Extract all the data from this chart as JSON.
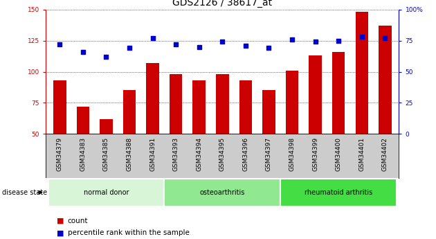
{
  "title": "GDS2126 / 38617_at",
  "samples": [
    "GSM34379",
    "GSM34383",
    "GSM34385",
    "GSM34388",
    "GSM34391",
    "GSM34393",
    "GSM34394",
    "GSM34395",
    "GSM34396",
    "GSM34397",
    "GSM34398",
    "GSM34399",
    "GSM34400",
    "GSM34401",
    "GSM34402"
  ],
  "bar_values": [
    93,
    72,
    62,
    85,
    107,
    98,
    93,
    98,
    93,
    85,
    101,
    113,
    116,
    148,
    137
  ],
  "dot_values": [
    122,
    116,
    112,
    119,
    127,
    122,
    120,
    124,
    121,
    119,
    126,
    124,
    125,
    128,
    127
  ],
  "groups": [
    {
      "label": "normal donor",
      "start": 0,
      "end": 5,
      "color": "#d8f5d8"
    },
    {
      "label": "osteoarthritis",
      "start": 5,
      "end": 10,
      "color": "#90e890"
    },
    {
      "label": "rheumatoid arthritis",
      "start": 10,
      "end": 15,
      "color": "#44dd44"
    }
  ],
  "ylim_left": [
    50,
    150
  ],
  "ylim_right": [
    0,
    100
  ],
  "yticks_left": [
    50,
    75,
    100,
    125,
    150
  ],
  "yticks_right": [
    0,
    25,
    50,
    75,
    100
  ],
  "bar_color": "#cc0000",
  "dot_color": "#0000cc",
  "grid_color": "#000000",
  "title_fontsize": 10,
  "label_fontsize": 7,
  "tick_fontsize": 6.5,
  "legend_fontsize": 7.5,
  "disease_state_label": "disease state",
  "legend_items": [
    "count",
    "percentile rank within the sample"
  ]
}
